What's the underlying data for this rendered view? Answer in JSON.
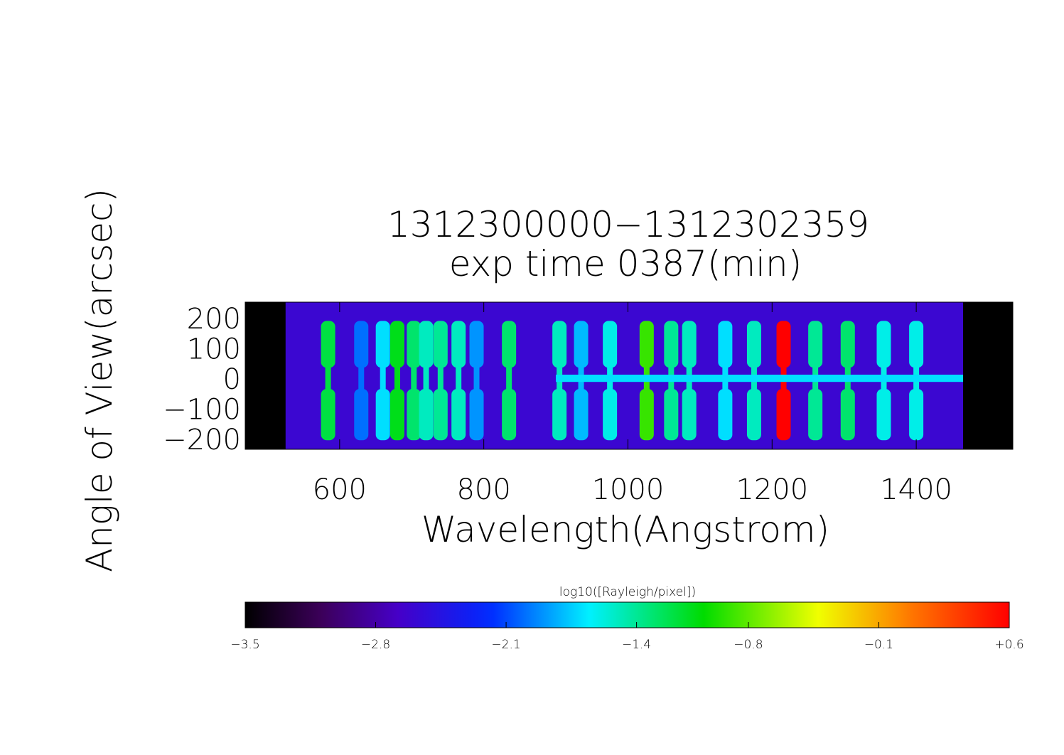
{
  "chart_data": {
    "type": "spectrogram",
    "title": "1312300000−1312302359",
    "subtitle": "exp time 0387(min)",
    "x_label": "Wavelength(Angstrom)",
    "y_label": "Angle of View(arcsec)",
    "colorbar_label": "log10([Rayleigh/pixel])",
    "xlim": [
      469,
      1534
    ],
    "xticks": [
      600,
      800,
      1000,
      1200,
      1400
    ],
    "ylim": [
      -235,
      252
    ],
    "yticks": [
      {
        "value": -200,
        "label": "−200"
      },
      {
        "value": -100,
        "label": "−100"
      },
      0,
      100,
      200
    ],
    "clim": [
      -3.5,
      0.6
    ],
    "cticks": [
      {
        "value": -3.5,
        "label": "−3.5"
      },
      {
        "value": -2.8,
        "label": "−2.8"
      },
      {
        "value": -2.1,
        "label": "−2.1"
      },
      {
        "value": -1.4,
        "label": "−1.4"
      },
      {
        "value": -0.8,
        "label": "−0.8"
      },
      {
        "value": -0.1,
        "label": "−0.1"
      },
      {
        "value": 0.6,
        "label": "+0.6"
      }
    ],
    "detector": {
      "x": [
        525,
        1465
      ],
      "value": -2.6
    },
    "trace": {
      "x": [
        900,
        1465
      ],
      "value": -1.7
    },
    "lines": {
      "wavelength": [
        584,
        630,
        660,
        680,
        703,
        720,
        740,
        765,
        790,
        835,
        905,
        935,
        975,
        1026,
        1060,
        1085,
        1135,
        1175,
        1216,
        1260,
        1305,
        1355,
        1400
      ],
      "value": [
        -1.2,
        -2.0,
        -1.7,
        -1.1,
        -1.3,
        -1.5,
        -1.4,
        -1.5,
        -1.9,
        -1.3,
        -1.5,
        -1.8,
        -1.6,
        -0.9,
        -1.4,
        -1.5,
        -1.7,
        -1.5,
        0.6,
        -1.4,
        -1.3,
        -1.6,
        -1.6
      ]
    }
  }
}
